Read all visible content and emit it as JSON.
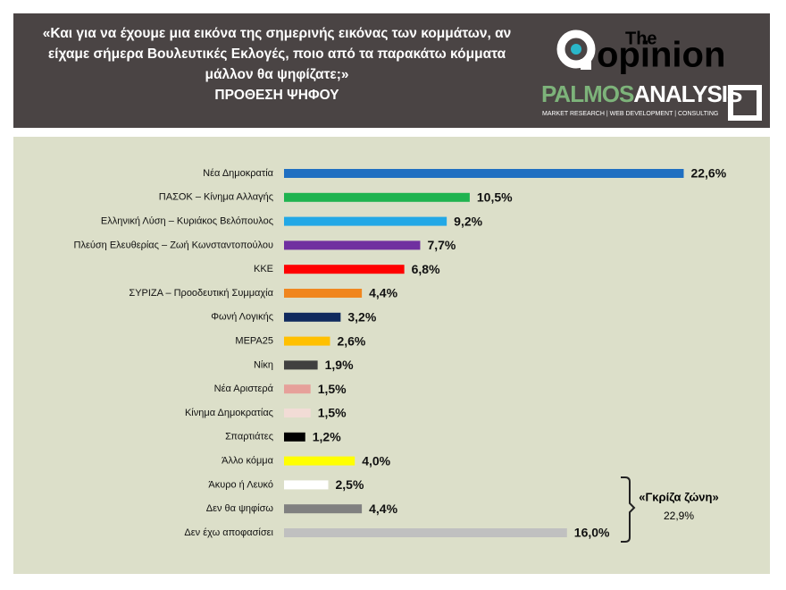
{
  "header": {
    "title": "«Και για να έχουμε μια εικόνα της σημερινής εικόνας των κομμάτων, αν είχαμε σήμερα Βουλευτικές Εκλογές, ποιο από τα παρακάτω κόμματα μάλλον θα ψηφίζατε;»",
    "subtitle": "ΠΡΟΘΕΣΗ ΨΗΦΟΥ",
    "logo_the": "The",
    "logo_opinion": "opinion",
    "brand_a": "PALMOS",
    "brand_b": "ANALYSIS",
    "tagline": "MARKET RESEARCH | WEB DEVELOPMENT | CONSULTING"
  },
  "chart_data": {
    "type": "bar",
    "orientation": "horizontal",
    "categories": [
      "Νέα Δημοκρατία",
      "ΠΑΣΟΚ – Κίνημα Αλλαγής",
      "Ελληνική Λύση – Κυριάκος Βελόπουλος",
      "Πλεύση Ελευθερίας – Ζωή Κωνσταντοπούλου",
      "ΚΚΕ",
      "ΣΥΡΙΖΑ – Προοδευτική Συμμαχία",
      "Φωνή Λογικής",
      "ΜΕΡΑ25",
      "Νίκη",
      "Νέα Αριστερά",
      "Κίνημα Δημοκρατίας",
      "Σπαρτιάτες",
      "Άλλο κόμμα",
      "Άκυρο ή Λευκό",
      "Δεν θα ψηφίσω",
      "Δεν έχω αποφασίσει"
    ],
    "values": [
      22.6,
      10.5,
      9.2,
      7.7,
      6.8,
      4.4,
      3.2,
      2.6,
      1.9,
      1.5,
      1.5,
      1.2,
      4.0,
      2.5,
      4.4,
      16.0
    ],
    "value_labels": [
      "22,6%",
      "10,5%",
      "9,2%",
      "7,7%",
      "6,8%",
      "4,4%",
      "3,2%",
      "2,6%",
      "1,9%",
      "1,5%",
      "1,5%",
      "1,2%",
      "4,0%",
      "2,5%",
      "4,4%",
      "16,0%"
    ],
    "colors": [
      "#1f6fc1",
      "#1fb34f",
      "#22a8e6",
      "#7030a0",
      "#ff0000",
      "#f0861e",
      "#102a5e",
      "#ffc000",
      "#404040",
      "#e6a09a",
      "#f2dcd6",
      "#000000",
      "#ffff00",
      "#ffffff",
      "#808080",
      "#c0c0c0"
    ],
    "annotation": [
      "«Γκρίζα ζώνη»",
      "22,9%"
    ]
  }
}
